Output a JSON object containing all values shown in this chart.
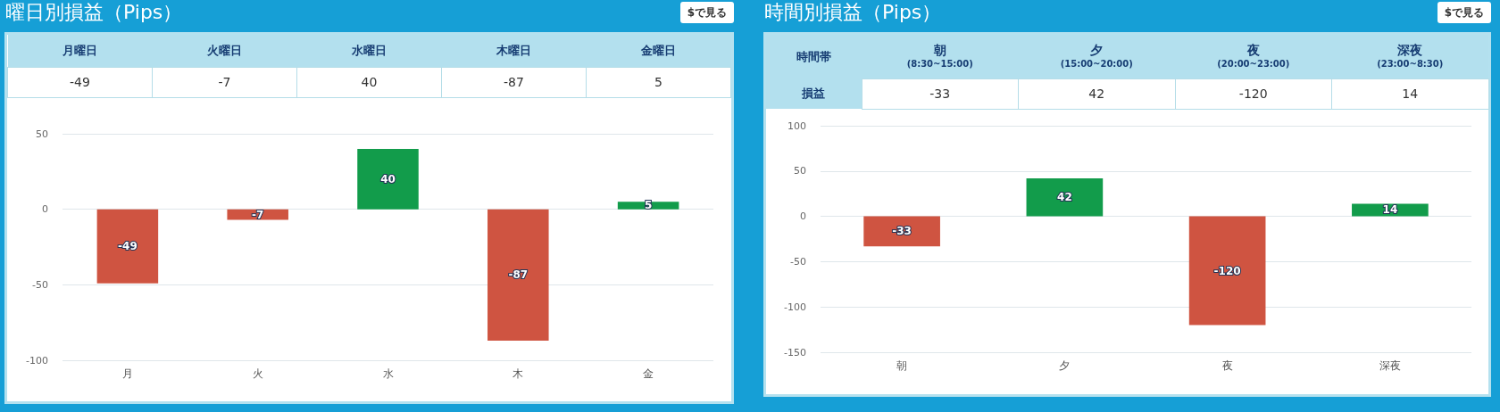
{
  "chart_data": [
    {
      "type": "bar",
      "title": "曜日別損益（Pips）",
      "annotations": [
        "$で見る",
        "月曜日",
        "火曜日",
        "水曜日",
        "木曜日",
        "金曜日",
        "-49",
        "-7",
        "40",
        "-87",
        "5"
      ],
      "categories": [
        "月",
        "火",
        "水",
        "木",
        "金"
      ],
      "values": [
        -49,
        -7,
        40,
        -87,
        5
      ],
      "colors": [
        "#cf5441",
        "#cf5441",
        "#129c4b",
        "#cf5441",
        "#129c4b"
      ],
      "ylim": [
        -100,
        50
      ],
      "yticks": [
        -100,
        -50,
        0,
        50
      ],
      "grid": "y",
      "data_labels": true
    },
    {
      "type": "bar",
      "title": "時間別損益（Pips）",
      "annotations": [
        "$で見る",
        "時間帯",
        "朝\n(8:30~15:00)",
        "夕\n(15:00~20:00)",
        "夜\n(20:00~23:00)",
        "深夜\n(23:00~8:30)",
        "損益",
        "-33",
        "42",
        "-120",
        "14"
      ],
      "categories": [
        "朝",
        "夕",
        "夜",
        "深夜"
      ],
      "values": [
        -33,
        42,
        -120,
        14
      ],
      "colors": [
        "#cf5441",
        "#129c4b",
        "#cf5441",
        "#129c4b"
      ],
      "ylim": [
        -150,
        100
      ],
      "yticks": [
        -150,
        -100,
        -50,
        0,
        50,
        100
      ],
      "grid": "y",
      "data_labels": true
    }
  ]
}
